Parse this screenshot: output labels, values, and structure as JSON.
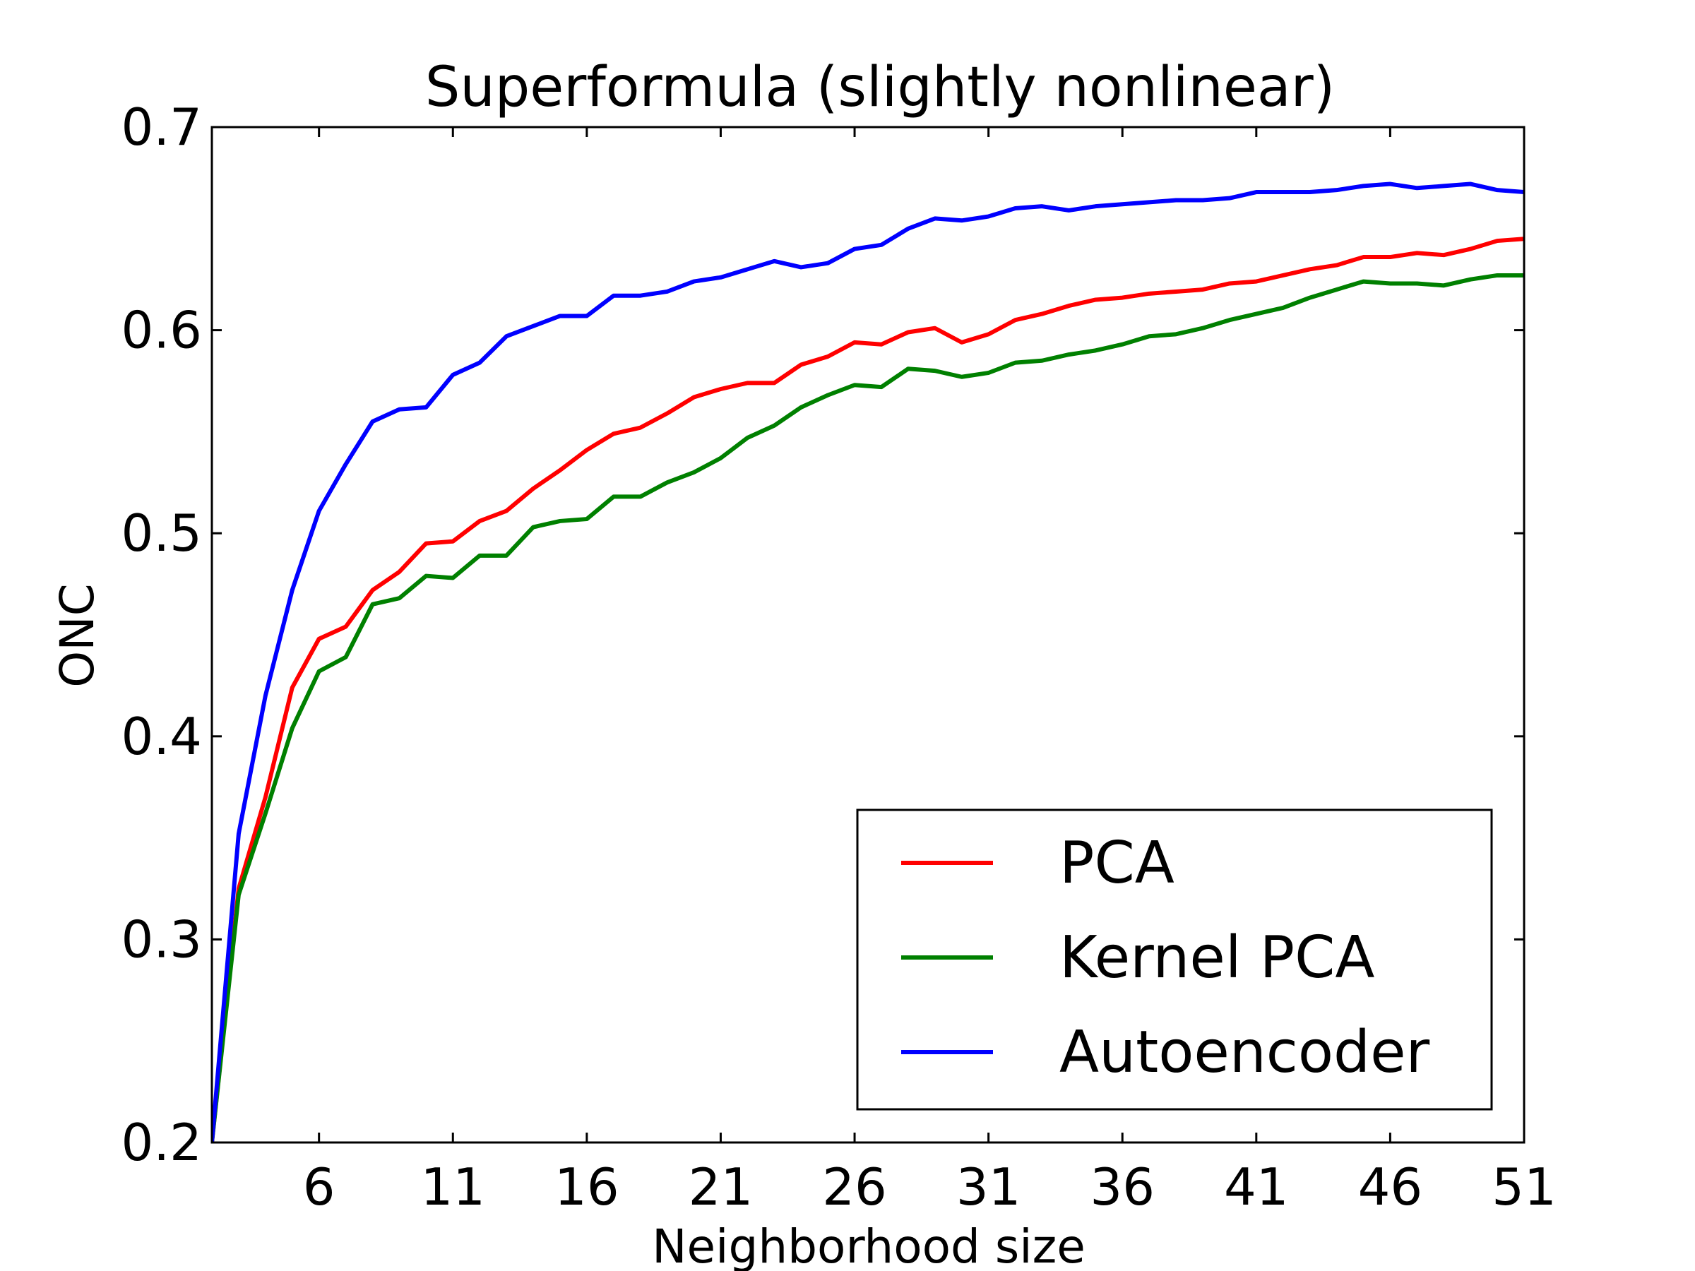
{
  "chart_data": {
    "type": "line",
    "title": "Superformula (slightly nonlinear)",
    "xlabel": "Neighborhood size",
    "ylabel": "ONC",
    "xlim": [
      2,
      51
    ],
    "ylim": [
      0.2,
      0.7
    ],
    "xticks": [
      6,
      11,
      16,
      21,
      26,
      31,
      36,
      41,
      46,
      51
    ],
    "yticks": [
      0.2,
      0.3,
      0.4,
      0.5,
      0.6,
      0.7
    ],
    "ytick_labels": [
      "0.2",
      "0.3",
      "0.4",
      "0.5",
      "0.6",
      "0.7"
    ],
    "grid": false,
    "legend_position": "bottom-right",
    "x": [
      2,
      3,
      4,
      5,
      6,
      7,
      8,
      9,
      10,
      11,
      12,
      13,
      14,
      15,
      16,
      17,
      18,
      19,
      20,
      21,
      22,
      23,
      24,
      25,
      26,
      27,
      28,
      29,
      30,
      31,
      32,
      33,
      34,
      35,
      36,
      37,
      38,
      39,
      40,
      41,
      42,
      43,
      44,
      45,
      46,
      47,
      48,
      49,
      50,
      51
    ],
    "series": [
      {
        "name": "PCA",
        "color": "#ff0000",
        "values": [
          0.2,
          0.325,
          0.37,
          0.424,
          0.448,
          0.454,
          0.472,
          0.481,
          0.495,
          0.496,
          0.506,
          0.511,
          0.522,
          0.531,
          0.541,
          0.549,
          0.552,
          0.559,
          0.567,
          0.571,
          0.574,
          0.574,
          0.583,
          0.587,
          0.594,
          0.593,
          0.599,
          0.601,
          0.594,
          0.598,
          0.605,
          0.608,
          0.612,
          0.615,
          0.616,
          0.618,
          0.619,
          0.62,
          0.623,
          0.624,
          0.627,
          0.63,
          0.632,
          0.636,
          0.636,
          0.638,
          0.637,
          0.64,
          0.644,
          0.645
        ]
      },
      {
        "name": "Kernel PCA",
        "color": "#008000",
        "values": [
          0.2,
          0.322,
          0.362,
          0.404,
          0.432,
          0.439,
          0.465,
          0.468,
          0.479,
          0.478,
          0.489,
          0.489,
          0.503,
          0.506,
          0.507,
          0.518,
          0.518,
          0.525,
          0.53,
          0.537,
          0.547,
          0.553,
          0.562,
          0.568,
          0.573,
          0.572,
          0.581,
          0.58,
          0.577,
          0.579,
          0.584,
          0.585,
          0.588,
          0.59,
          0.593,
          0.597,
          0.598,
          0.601,
          0.605,
          0.608,
          0.611,
          0.616,
          0.62,
          0.624,
          0.623,
          0.623,
          0.622,
          0.625,
          0.627,
          0.627
        ]
      },
      {
        "name": "Autoencoder",
        "color": "#0000ff",
        "values": [
          0.2,
          0.352,
          0.42,
          0.472,
          0.511,
          0.534,
          0.555,
          0.561,
          0.562,
          0.578,
          0.584,
          0.597,
          0.602,
          0.607,
          0.607,
          0.617,
          0.617,
          0.619,
          0.624,
          0.626,
          0.63,
          0.634,
          0.631,
          0.633,
          0.64,
          0.642,
          0.65,
          0.655,
          0.654,
          0.656,
          0.66,
          0.661,
          0.659,
          0.661,
          0.662,
          0.663,
          0.664,
          0.664,
          0.665,
          0.668,
          0.668,
          0.668,
          0.669,
          0.671,
          0.672,
          0.67,
          0.671,
          0.672,
          0.669,
          0.668
        ]
      }
    ]
  }
}
